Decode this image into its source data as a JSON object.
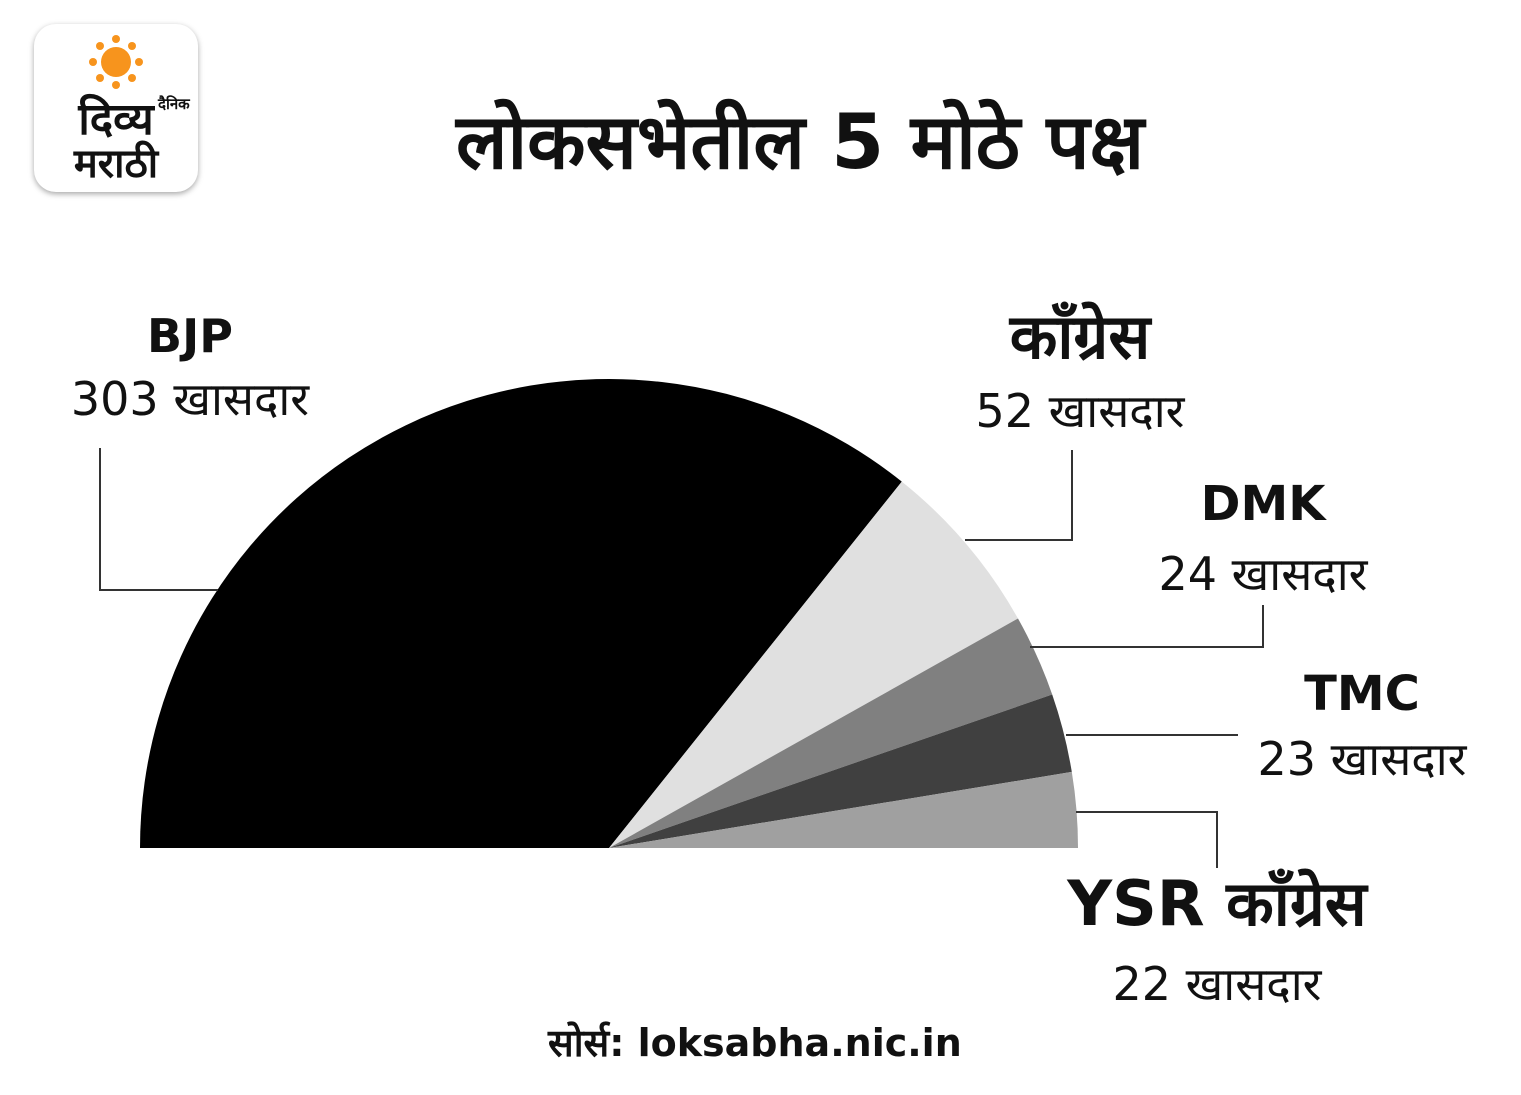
{
  "logo": {
    "small": "दैनिक",
    "line1": "दिव्य",
    "line2": "मराठी"
  },
  "title": "लोकसभेतील 5 मोठे पक्ष",
  "source": "सोर्स: loksabha.nic.in",
  "chart_data": {
    "type": "pie",
    "shape": "semicircle",
    "title": "लोकसभेतील 5 मोठे पक्ष",
    "slices": [
      {
        "name": "BJP",
        "value": 303,
        "label": "303 खासदार",
        "color": "#000000"
      },
      {
        "name": "काँग्रेस",
        "value": 52,
        "label": "52 खासदार",
        "color": "#e0e0e0"
      },
      {
        "name": "DMK",
        "value": 24,
        "label": "24 खासदार",
        "color": "#808080"
      },
      {
        "name": "TMC",
        "value": 23,
        "label": "23 खासदार",
        "color": "#404040"
      },
      {
        "name": "YSR काँग्रेस",
        "value": 22,
        "label": "22 खासदार",
        "color": "#a0a0a0"
      }
    ]
  }
}
